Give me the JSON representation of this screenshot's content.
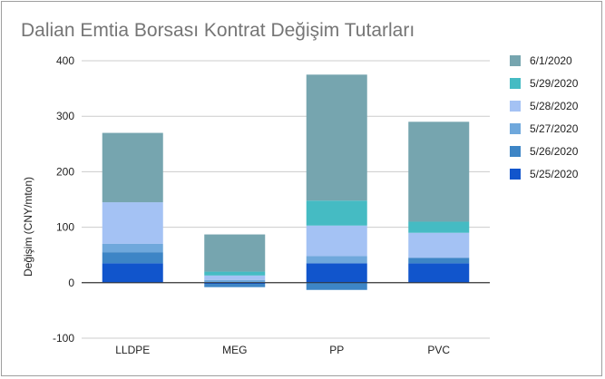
{
  "chart_data": {
    "type": "bar",
    "stacked": true,
    "title": "Dalian Emtia Borsası Kontrat Değişim Tutarları",
    "xlabel": "",
    "ylabel": "Değişim (CNY/mton)",
    "ylim": [
      -100,
      400
    ],
    "yticks": [
      -100,
      0,
      100,
      200,
      300,
      400
    ],
    "grid": true,
    "legend_position": "right",
    "categories": [
      "LLDPE",
      "MEG",
      "PP",
      "PVC"
    ],
    "series": [
      {
        "name": "5/25/2020",
        "color": "#1155cc",
        "values": [
          35,
          -2,
          35,
          35
        ]
      },
      {
        "name": "5/26/2020",
        "color": "#3d85c6",
        "values": [
          20,
          -6,
          -13,
          10
        ]
      },
      {
        "name": "5/27/2020",
        "color": "#6fa8dc",
        "values": [
          15,
          5,
          13,
          0
        ]
      },
      {
        "name": "5/28/2020",
        "color": "#a4c2f4",
        "values": [
          75,
          8,
          55,
          45
        ]
      },
      {
        "name": "5/29/2020",
        "color": "#45bbc3",
        "values": [
          0,
          7,
          45,
          20
        ]
      },
      {
        "name": "6/1/2020",
        "color": "#76a5af",
        "values": [
          125,
          67,
          227,
          180
        ]
      }
    ]
  }
}
